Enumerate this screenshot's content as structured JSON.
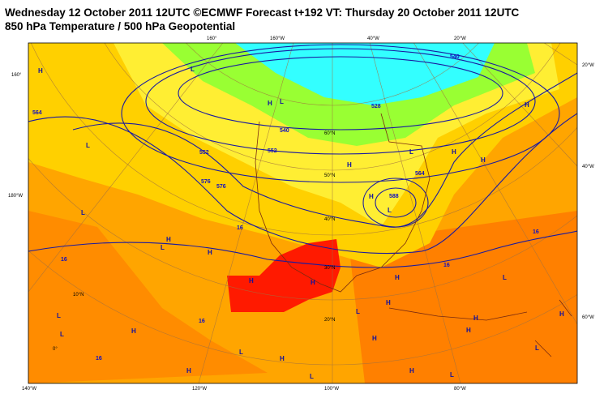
{
  "header": {
    "title": "Wednesday 12 October 2011 12UTC ©ECMWF Forecast t+192 VT: Thursday 20 October 2011 12UTC",
    "subtitle": "850 hPa Temperature / 500 hPa Geopotential"
  },
  "edge_labels": [
    "160°",
    "160°W",
    "40°W",
    "20°W",
    "160°",
    "180°W",
    "20°W",
    "40°W",
    "60°W",
    "140°W",
    "120°W",
    "100°W",
    "80°W"
  ],
  "inner_labels": [
    "60°N",
    "50°N",
    "40°N",
    "30°N",
    "20°N",
    "10°N",
    "0°"
  ],
  "contour_labels": [
    "528",
    "540",
    "552",
    "564",
    "576",
    "588",
    "576",
    "564",
    "552",
    "540",
    "16",
    "16",
    "16",
    "16",
    "16",
    "16"
  ],
  "pressure_centers": [
    "H",
    "L",
    "L",
    "H",
    "L",
    "H",
    "H",
    "L",
    "H",
    "H",
    "L",
    "H",
    "H",
    "L",
    "H",
    "H",
    "L",
    "H",
    "H",
    "L",
    "L",
    "H",
    "H",
    "L",
    "H",
    "L",
    "H",
    "H",
    "H",
    "L",
    "L",
    "H",
    "H",
    "L",
    "H",
    "L"
  ]
}
